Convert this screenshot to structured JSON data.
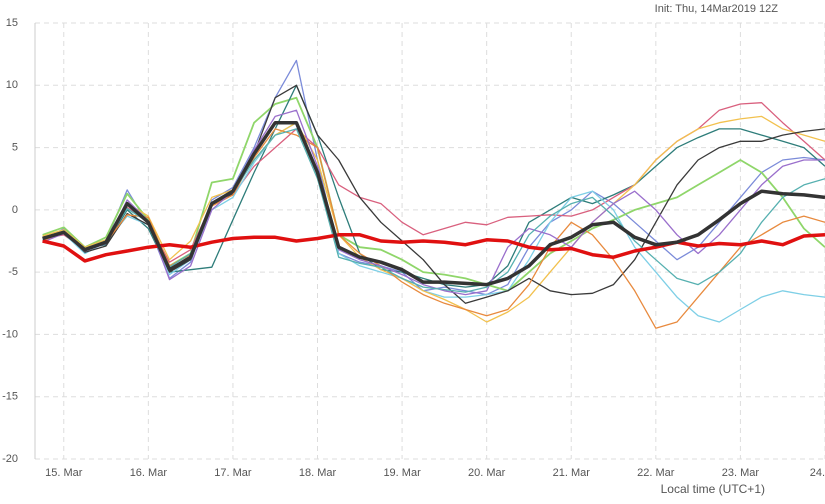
{
  "chart_data": {
    "type": "line",
    "title": "Init: Thu, 14Mar2019 12Z",
    "x_label": "Local time (UTC+1)",
    "x": [
      14.75,
      15,
      15.25,
      15.5,
      15.75,
      16,
      16.25,
      16.5,
      16.75,
      17,
      17.25,
      17.5,
      17.75,
      18,
      18.25,
      18.5,
      18.75,
      19,
      19.25,
      19.5,
      19.75,
      20,
      20.25,
      20.5,
      20.75,
      21,
      21.25,
      21.5,
      21.75,
      22,
      22.25,
      22.5,
      22.75,
      23,
      23.25,
      23.5,
      23.75,
      24
    ],
    "xlim": [
      14.66,
      24
    ],
    "xticks": [
      {
        "value": 15,
        "label": "15. Mar"
      },
      {
        "value": 16,
        "label": "16. Mar"
      },
      {
        "value": 17,
        "label": "17. Mar"
      },
      {
        "value": 18,
        "label": "18. Mar"
      },
      {
        "value": 19,
        "label": "19. Mar"
      },
      {
        "value": 20,
        "label": "20. Mar"
      },
      {
        "value": 21,
        "label": "21. Mar"
      },
      {
        "value": 22,
        "label": "22. Mar"
      },
      {
        "value": 23,
        "label": "23. Mar"
      },
      {
        "value": 24,
        "label": "24."
      }
    ],
    "ylim": [
      -20,
      15
    ],
    "yticks": [
      -20,
      -15,
      -10,
      -5,
      0,
      5,
      10,
      15
    ],
    "grid": true,
    "series": [
      {
        "color": "#7b8bd9",
        "width": 1.3,
        "values": [
          -2.5,
          -1.5,
          -3.3,
          -2.5,
          1.6,
          -1.2,
          -5.5,
          -4.2,
          0.8,
          1.8,
          5,
          9,
          12,
          4,
          -3.5,
          -4.2,
          -4.5,
          -5,
          -6.5,
          -6.2,
          -6.5,
          -6.8,
          -6,
          -3,
          -1,
          0,
          1.5,
          0.5,
          -1,
          -2.5,
          -4,
          -3,
          -1,
          1,
          3,
          4,
          4.2,
          4.0
        ]
      },
      {
        "color": "#8fd66a",
        "width": 1.8,
        "values": [
          -2,
          -1.4,
          -3,
          -2.2,
          1.3,
          -0.8,
          -4.5,
          -3.5,
          2.2,
          2.5,
          7,
          8.5,
          9,
          5,
          -2,
          -3,
          -3.2,
          -4,
          -5,
          -5.2,
          -5.5,
          -6,
          -6.5,
          -5,
          -3.5,
          -2.5,
          -1.5,
          -0.8,
          0,
          0.5,
          1,
          2,
          3,
          4,
          3,
          1,
          -1.5,
          -3
        ]
      },
      {
        "color": "#2e7d7a",
        "width": 1.3,
        "values": [
          -2.2,
          -1.7,
          -3.1,
          -2.8,
          0,
          -1.5,
          -5,
          -4.8,
          -4.6,
          -0.8,
          3,
          6.5,
          10,
          6,
          1,
          -3.5,
          -4.8,
          -5,
          -5.5,
          -6,
          -6.2,
          -6,
          -4.5,
          -1,
          0,
          1,
          0.5,
          1.2,
          2,
          3.5,
          5,
          5.8,
          6.5,
          6.5,
          6,
          5.5,
          5,
          3.5
        ]
      },
      {
        "color": "#d9607e",
        "width": 1.3,
        "values": [
          -2.3,
          -2,
          -3.2,
          -2.7,
          0.2,
          -1,
          -4.2,
          -3.2,
          0.5,
          1.2,
          3.5,
          5,
          6.5,
          5,
          2,
          1,
          0.5,
          -1,
          -2,
          -1.5,
          -1,
          -1.2,
          -0.6,
          -0.5,
          -0.4,
          -0.5,
          0,
          1,
          2,
          4,
          5.5,
          6.5,
          8,
          8.5,
          8.6,
          7,
          5.5,
          4
        ]
      },
      {
        "color": "#7ecfe6",
        "width": 1.3,
        "values": [
          -2.4,
          -1.9,
          -3.5,
          -2.6,
          -0.5,
          -1.2,
          -5.2,
          -4,
          0,
          1,
          3.8,
          6,
          7,
          3,
          -3.5,
          -4.5,
          -5,
          -5.5,
          -6.5,
          -7,
          -7,
          -6.8,
          -6.5,
          -4,
          -1,
          1,
          1.5,
          0,
          -3,
          -5,
          -7,
          -8.5,
          -9,
          -8,
          -7,
          -6.5,
          -6.8,
          -7
        ]
      },
      {
        "color": "#f2c14e",
        "width": 1.3,
        "values": [
          -2.1,
          -1.6,
          -3,
          -2.4,
          0.5,
          -0.5,
          -4,
          -2.5,
          1,
          1.6,
          4,
          6,
          7,
          4,
          -2,
          -3.8,
          -4.8,
          -5.5,
          -6.5,
          -7.2,
          -8,
          -9,
          -8.2,
          -7,
          -5,
          -3,
          -1,
          0.5,
          2,
          4,
          5.5,
          6.5,
          7,
          7.3,
          7.5,
          6.5,
          6,
          5.5
        ]
      },
      {
        "color": "#3a3a3a",
        "width": 1.3,
        "values": [
          -2.2,
          -1.8,
          -3.4,
          -2.9,
          -0.3,
          -1.2,
          -5,
          -4,
          0.4,
          1.3,
          4.5,
          9,
          10,
          6,
          4,
          1,
          -1,
          -2.5,
          -4,
          -6,
          -7.5,
          -7,
          -6.5,
          -5.5,
          -6.5,
          -6.8,
          -6.7,
          -6,
          -4,
          -1,
          2,
          4,
          5,
          5.5,
          5.5,
          6,
          6.3,
          6.5
        ]
      },
      {
        "color": "#e88a3e",
        "width": 1.3,
        "values": [
          -2.5,
          -1.8,
          -3.2,
          -2.6,
          -0.4,
          -0.6,
          -4.5,
          -3.6,
          0.3,
          1.2,
          4.2,
          6.5,
          6,
          5,
          -2,
          -3.5,
          -4.5,
          -5.8,
          -6.8,
          -7.5,
          -8,
          -8.5,
          -8,
          -6,
          -3,
          -1,
          -2,
          -4,
          -6.5,
          -9.5,
          -9,
          -7,
          -5,
          -3,
          -2,
          -1,
          -0.5,
          -1
        ]
      },
      {
        "color": "#9a6fcc",
        "width": 1.3,
        "values": [
          -2.6,
          -1.9,
          -3.3,
          -2.7,
          0.8,
          -0.9,
          -5.6,
          -4.5,
          0,
          1.5,
          4.8,
          7.5,
          8,
          3.5,
          -3.2,
          -4,
          -4.5,
          -5.2,
          -6,
          -6.5,
          -6.8,
          -6.5,
          -3,
          -1.5,
          -2,
          -3,
          -1,
          0.5,
          1.5,
          0,
          -2,
          -3.5,
          -2,
          0,
          2,
          3.5,
          4,
          4
        ]
      },
      {
        "color": "#56b0b0",
        "width": 1.3,
        "values": [
          -2.3,
          -1.7,
          -3.1,
          -2.5,
          0.1,
          -1,
          -4.6,
          -3.5,
          0.6,
          1.4,
          4,
          6,
          6.5,
          2.5,
          -3.8,
          -4.3,
          -4.6,
          -5.5,
          -6.2,
          -6.4,
          -6.6,
          -6.2,
          -5,
          -2,
          -0.5,
          0.5,
          1,
          -0.5,
          -2.5,
          -4,
          -5.5,
          -6,
          -5,
          -3.5,
          -1,
          1,
          2,
          2.5
        ]
      },
      {
        "color": "#e01010",
        "width": 3.5,
        "values": [
          -2.5,
          -2.9,
          -4.1,
          -3.6,
          -3.3,
          -3,
          -2.8,
          -3,
          -2.6,
          -2.3,
          -2.2,
          -2.2,
          -2.5,
          -2.3,
          -2.0,
          -2.0,
          -2.5,
          -2.6,
          -2.5,
          -2.6,
          -2.8,
          -2.4,
          -2.5,
          -3,
          -3.2,
          -3.1,
          -3.6,
          -3.8,
          -3.3,
          -3.0,
          -2.6,
          -2.9,
          -2.7,
          -2.8,
          -2.5,
          -2.8,
          -2.1,
          -2.0
        ]
      },
      {
        "color": "#333333",
        "width": 3.5,
        "values": [
          -2.3,
          -1.8,
          -3.2,
          -2.6,
          0.5,
          -1,
          -4.8,
          -3.8,
          0.5,
          1.5,
          4.5,
          7,
          7,
          3,
          -3,
          -3.8,
          -4.2,
          -4.8,
          -5.8,
          -5.8,
          -5.9,
          -6,
          -5.5,
          -4.5,
          -2.8,
          -2.2,
          -1.2,
          -1,
          -2.2,
          -2.8,
          -2.6,
          -2,
          -0.8,
          0.5,
          1.5,
          1.3,
          1.2,
          1.0
        ]
      }
    ]
  }
}
